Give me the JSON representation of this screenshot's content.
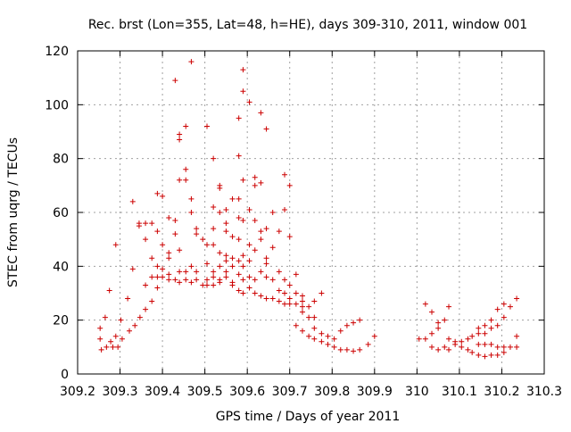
{
  "chart_data": {
    "type": "scatter",
    "title": "Rec. brst (Lon=355, Lat=48, h=HE), days 309-310, 2011, window 001",
    "xlabel": "GPS time / Days of year 2011",
    "ylabel": "STEC from uqrg / TECUs",
    "xlim": [
      309.2,
      310.3
    ],
    "ylim": [
      0,
      120
    ],
    "xticks": [
      "309.2",
      "309.3",
      "309.4",
      "309.5",
      "309.6",
      "309.7",
      "309.8",
      "309.9",
      "310",
      "310.1",
      "310.2",
      "310.3"
    ],
    "yticks": [
      "0",
      "20",
      "40",
      "60",
      "80",
      "100",
      "120"
    ],
    "grid": true,
    "legend": "none",
    "marker": "+",
    "color": "#cc0000",
    "points": [
      [
        309.253,
        17
      ],
      [
        309.253,
        13
      ],
      [
        309.256,
        9
      ],
      [
        309.265,
        21
      ],
      [
        309.268,
        10
      ],
      [
        309.275,
        31
      ],
      [
        309.278,
        12
      ],
      [
        309.283,
        10
      ],
      [
        309.29,
        48
      ],
      [
        309.29,
        14
      ],
      [
        309.295,
        10
      ],
      [
        309.302,
        20
      ],
      [
        309.305,
        13
      ],
      [
        309.318,
        28
      ],
      [
        309.322,
        16
      ],
      [
        309.33,
        64
      ],
      [
        309.33,
        39
      ],
      [
        309.335,
        18
      ],
      [
        309.345,
        56
      ],
      [
        309.345,
        55
      ],
      [
        309.347,
        21
      ],
      [
        309.36,
        56
      ],
      [
        309.36,
        50
      ],
      [
        309.36,
        33
      ],
      [
        309.36,
        24
      ],
      [
        309.375,
        56
      ],
      [
        309.375,
        43
      ],
      [
        309.375,
        36
      ],
      [
        309.375,
        27
      ],
      [
        309.388,
        67
      ],
      [
        309.388,
        53
      ],
      [
        309.388,
        40
      ],
      [
        309.388,
        36
      ],
      [
        309.388,
        32
      ],
      [
        309.4,
        66
      ],
      [
        309.4,
        48
      ],
      [
        309.4,
        39
      ],
      [
        309.4,
        36
      ],
      [
        309.415,
        58
      ],
      [
        309.415,
        45
      ],
      [
        309.415,
        43
      ],
      [
        309.415,
        37
      ],
      [
        309.415,
        35
      ],
      [
        309.43,
        109
      ],
      [
        309.43,
        57
      ],
      [
        309.43,
        52
      ],
      [
        309.43,
        35
      ],
      [
        309.44,
        89
      ],
      [
        309.44,
        87
      ],
      [
        309.44,
        72
      ],
      [
        309.44,
        46
      ],
      [
        309.44,
        38
      ],
      [
        309.44,
        34
      ],
      [
        309.455,
        92
      ],
      [
        309.455,
        76
      ],
      [
        309.455,
        72
      ],
      [
        309.455,
        38
      ],
      [
        309.455,
        35
      ],
      [
        309.468,
        116
      ],
      [
        309.468,
        65
      ],
      [
        309.468,
        60
      ],
      [
        309.468,
        40
      ],
      [
        309.468,
        34
      ],
      [
        309.48,
        54
      ],
      [
        309.48,
        52
      ],
      [
        309.48,
        38
      ],
      [
        309.48,
        35
      ],
      [
        309.495,
        50
      ],
      [
        309.495,
        33
      ],
      [
        309.505,
        92
      ],
      [
        309.505,
        48
      ],
      [
        309.505,
        41
      ],
      [
        309.505,
        35
      ],
      [
        309.505,
        33
      ],
      [
        309.52,
        80
      ],
      [
        309.52,
        62
      ],
      [
        309.52,
        54
      ],
      [
        309.52,
        48
      ],
      [
        309.52,
        38
      ],
      [
        309.52,
        36
      ],
      [
        309.52,
        33
      ],
      [
        309.535,
        70
      ],
      [
        309.535,
        69
      ],
      [
        309.535,
        60
      ],
      [
        309.535,
        45
      ],
      [
        309.535,
        40
      ],
      [
        309.535,
        35
      ],
      [
        309.535,
        34
      ],
      [
        309.55,
        61
      ],
      [
        309.55,
        56
      ],
      [
        309.55,
        53
      ],
      [
        309.55,
        44
      ],
      [
        309.55,
        42
      ],
      [
        309.55,
        38
      ],
      [
        309.55,
        36
      ],
      [
        309.565,
        65
      ],
      [
        309.565,
        51
      ],
      [
        309.565,
        43
      ],
      [
        309.565,
        40
      ],
      [
        309.565,
        34
      ],
      [
        309.565,
        33
      ],
      [
        309.58,
        95
      ],
      [
        309.58,
        81
      ],
      [
        309.58,
        65
      ],
      [
        309.58,
        58
      ],
      [
        309.58,
        50
      ],
      [
        309.58,
        42
      ],
      [
        309.58,
        37
      ],
      [
        309.58,
        31
      ],
      [
        309.59,
        113
      ],
      [
        309.59,
        105
      ],
      [
        309.59,
        72
      ],
      [
        309.59,
        57
      ],
      [
        309.59,
        44
      ],
      [
        309.59,
        40
      ],
      [
        309.59,
        35
      ],
      [
        309.59,
        30
      ],
      [
        309.605,
        101
      ],
      [
        309.605,
        61
      ],
      [
        309.605,
        48
      ],
      [
        309.605,
        42
      ],
      [
        309.605,
        36
      ],
      [
        309.605,
        32
      ],
      [
        309.618,
        73
      ],
      [
        309.618,
        70
      ],
      [
        309.618,
        57
      ],
      [
        309.618,
        46
      ],
      [
        309.618,
        35
      ],
      [
        309.618,
        30
      ],
      [
        309.632,
        97
      ],
      [
        309.632,
        71
      ],
      [
        309.632,
        53
      ],
      [
        309.632,
        50
      ],
      [
        309.632,
        38
      ],
      [
        309.632,
        29
      ],
      [
        309.645,
        91
      ],
      [
        309.645,
        54
      ],
      [
        309.645,
        43
      ],
      [
        309.645,
        41
      ],
      [
        309.645,
        36
      ],
      [
        309.645,
        28
      ],
      [
        309.66,
        60
      ],
      [
        309.66,
        47
      ],
      [
        309.66,
        35
      ],
      [
        309.66,
        28
      ],
      [
        309.675,
        53
      ],
      [
        309.675,
        38
      ],
      [
        309.675,
        31
      ],
      [
        309.675,
        27
      ],
      [
        309.688,
        74
      ],
      [
        309.688,
        61
      ],
      [
        309.688,
        35
      ],
      [
        309.688,
        30
      ],
      [
        309.688,
        26
      ],
      [
        309.7,
        70
      ],
      [
        309.7,
        51
      ],
      [
        309.7,
        33
      ],
      [
        309.7,
        28
      ],
      [
        309.7,
        26
      ],
      [
        309.715,
        37
      ],
      [
        309.715,
        30
      ],
      [
        309.715,
        26
      ],
      [
        309.715,
        18
      ],
      [
        309.73,
        29
      ],
      [
        309.73,
        27
      ],
      [
        309.73,
        25
      ],
      [
        309.73,
        23
      ],
      [
        309.73,
        16
      ],
      [
        309.745,
        25
      ],
      [
        309.745,
        21
      ],
      [
        309.745,
        14
      ],
      [
        309.758,
        27
      ],
      [
        309.758,
        21
      ],
      [
        309.758,
        17
      ],
      [
        309.758,
        13
      ],
      [
        309.775,
        30
      ],
      [
        309.775,
        15
      ],
      [
        309.775,
        12
      ],
      [
        309.79,
        14
      ],
      [
        309.79,
        11
      ],
      [
        309.805,
        13
      ],
      [
        309.805,
        10
      ],
      [
        309.82,
        16
      ],
      [
        309.82,
        9
      ],
      [
        309.835,
        18
      ],
      [
        309.835,
        9
      ],
      [
        309.85,
        19
      ],
      [
        309.85,
        8.5
      ],
      [
        309.865,
        20
      ],
      [
        309.865,
        9
      ],
      [
        309.885,
        11
      ],
      [
        309.9,
        14
      ],
      [
        310.005,
        13
      ],
      [
        310.02,
        26
      ],
      [
        310.02,
        13
      ],
      [
        310.035,
        23
      ],
      [
        310.035,
        15
      ],
      [
        310.035,
        10
      ],
      [
        310.05,
        19
      ],
      [
        310.05,
        17
      ],
      [
        310.05,
        9
      ],
      [
        310.065,
        20
      ],
      [
        310.065,
        10
      ],
      [
        310.075,
        25
      ],
      [
        310.075,
        13
      ],
      [
        310.075,
        9
      ],
      [
        310.09,
        12
      ],
      [
        310.09,
        11
      ],
      [
        310.105,
        12
      ],
      [
        310.105,
        10
      ],
      [
        310.12,
        13
      ],
      [
        310.12,
        9
      ],
      [
        310.13,
        14
      ],
      [
        310.13,
        8
      ],
      [
        310.145,
        17
      ],
      [
        310.145,
        15
      ],
      [
        310.145,
        11
      ],
      [
        310.145,
        7
      ],
      [
        310.16,
        18
      ],
      [
        310.16,
        15
      ],
      [
        310.16,
        11
      ],
      [
        310.16,
        6.5
      ],
      [
        310.175,
        20
      ],
      [
        310.175,
        17
      ],
      [
        310.175,
        11
      ],
      [
        310.175,
        7
      ],
      [
        310.19,
        24
      ],
      [
        310.19,
        18
      ],
      [
        310.19,
        10
      ],
      [
        310.19,
        7
      ],
      [
        310.205,
        26
      ],
      [
        310.205,
        21
      ],
      [
        310.205,
        10
      ],
      [
        310.205,
        8
      ],
      [
        310.22,
        25
      ],
      [
        310.22,
        10
      ],
      [
        310.235,
        28
      ],
      [
        310.235,
        14
      ],
      [
        310.235,
        10
      ]
    ]
  }
}
